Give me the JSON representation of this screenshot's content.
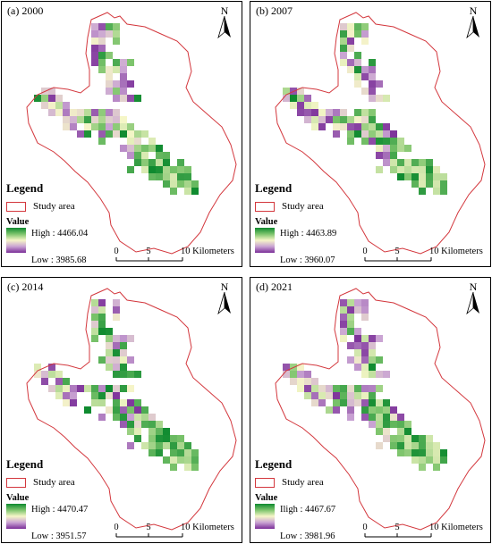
{
  "panels": [
    {
      "title": "(a) 2000",
      "high": "High : 4466.04",
      "low": "Low : 3985.68",
      "seed": 11
    },
    {
      "title": "(b) 2007",
      "high": "High : 4463.89",
      "low": "Low : 3960.07",
      "seed": 23
    },
    {
      "title": "(c) 2014",
      "high": "High : 4470.47",
      "low": "Low : 3951.57",
      "seed": 37
    },
    {
      "title": "(d) 2021",
      "high": "Iligh : 4467.67",
      "low": "Low : 3981.96",
      "seed": 53
    }
  ],
  "legend": {
    "title": "Legend",
    "study_area": "Study area",
    "value": "Value"
  },
  "north_label": "N",
  "scale": {
    "ticks": [
      "0",
      "5",
      "10 Kilometers"
    ]
  },
  "colors": {
    "boundary": "#d3373d",
    "high": "#0e8a2f",
    "mid": "#f6f6c8",
    "low": "#7a2e98"
  }
}
